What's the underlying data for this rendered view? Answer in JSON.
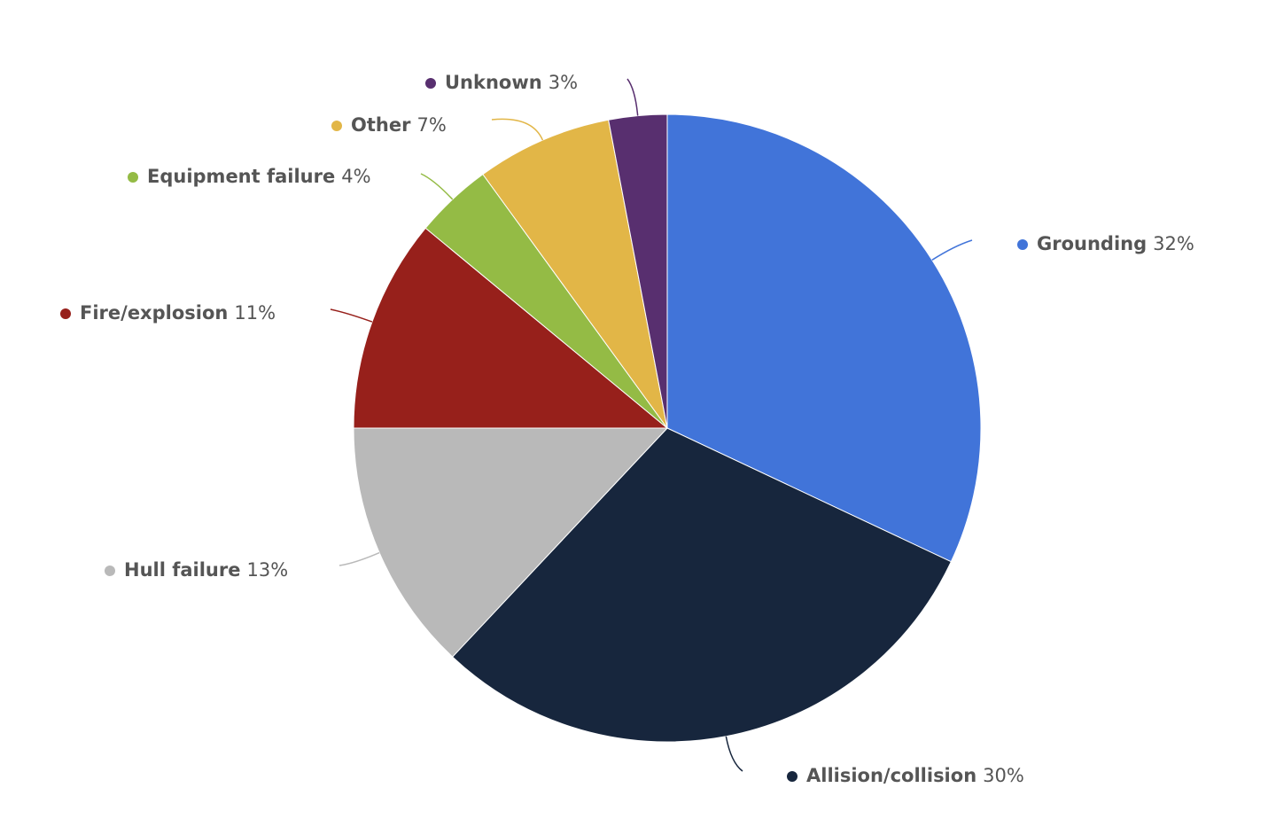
{
  "chart_data": {
    "type": "pie",
    "categories": [
      "Grounding",
      "Allision/collision",
      "Hull failure",
      "Fire/explosion",
      "Equipment failure",
      "Other",
      "Unknown"
    ],
    "values": [
      32,
      30,
      13,
      11,
      4,
      7,
      3
    ],
    "value_labels": [
      "32%",
      "30%",
      "13%",
      "11%",
      "4%",
      "7%",
      "3%"
    ],
    "colors": [
      "#4174d9",
      "#17263d",
      "#b9b9b9",
      "#97201b",
      "#94bb45",
      "#e2b647",
      "#582f6f"
    ]
  }
}
